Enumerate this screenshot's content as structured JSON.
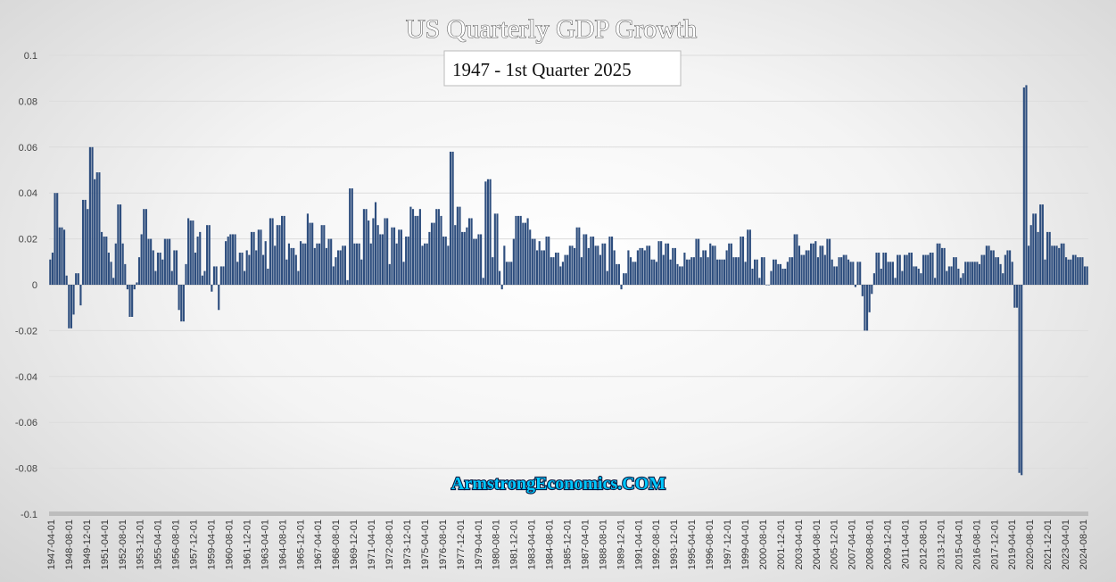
{
  "chart_data": {
    "type": "bar",
    "title": "US Quarterly GDP Growth",
    "subtitle": "1947 - 1st Quarter 2025",
    "watermark": "ArmstrongEconomics.COM",
    "xlabel": "",
    "ylabel": "",
    "ylim": [
      -0.1,
      0.1
    ],
    "yticks": [
      "0.1",
      "0.08",
      "0.06",
      "0.04",
      "0.02",
      "0",
      "-0.02",
      "-0.04",
      "-0.06",
      "-0.08",
      "-0.1"
    ],
    "x_start": "1947-04-01",
    "x_tick_labels": [
      "1947-04-01",
      "1948-08-01",
      "1949-12-01",
      "1951-04-01",
      "1952-08-01",
      "1953-12-01",
      "1955-04-01",
      "1956-08-01",
      "1957-12-01",
      "1959-04-01",
      "1960-08-01",
      "1961-12-01",
      "1963-04-01",
      "1964-08-01",
      "1965-12-01",
      "1967-04-01",
      "1968-08-01",
      "1969-12-01",
      "1971-04-01",
      "1972-08-01",
      "1973-12-01",
      "1975-04-01",
      "1976-08-01",
      "1977-12-01",
      "1979-04-01",
      "1980-08-01",
      "1981-12-01",
      "1983-04-01",
      "1984-08-01",
      "1985-12-01",
      "1987-04-01",
      "1988-08-01",
      "1989-12-01",
      "1991-04-01",
      "1992-08-01",
      "1993-12-01",
      "1995-04-01",
      "1996-08-01",
      "1997-12-01",
      "1999-04-01",
      "2000-08-01",
      "2001-12-01",
      "2003-04-01",
      "2004-08-01",
      "2005-12-01",
      "2007-04-01",
      "2008-08-01",
      "2009-12-01",
      "2011-04-01",
      "2012-08-01",
      "2013-12-01",
      "2015-04-01",
      "2016-08-01",
      "2017-12-01",
      "2019-04-01",
      "2020-08-01",
      "2021-12-01",
      "2023-04-01",
      "2024-08-01"
    ],
    "bar_color": "#2e4e7e",
    "values": [
      0.011,
      0.014,
      0.04,
      0.04,
      0.025,
      0.025,
      0.024,
      0.004,
      -0.019,
      -0.019,
      -0.013,
      0.005,
      0.005,
      -0.009,
      0.037,
      0.037,
      0.033,
      0.06,
      0.06,
      0.046,
      0.049,
      0.049,
      0.023,
      0.021,
      0.021,
      0.014,
      0.01,
      0.003,
      0.018,
      0.035,
      0.035,
      0.018,
      0.009,
      -0.002,
      -0.014,
      -0.014,
      -0.002,
      0.001,
      0.012,
      0.022,
      0.033,
      0.033,
      0.02,
      0.02,
      0.015,
      0.006,
      0.014,
      0.014,
      0.011,
      0.02,
      0.02,
      0.02,
      0.006,
      0.015,
      0.015,
      -0.011,
      -0.016,
      -0.016,
      0.009,
      0.029,
      0.028,
      0.028,
      0.014,
      0.021,
      0.023,
      0.004,
      0.006,
      0.026,
      0.026,
      -0.003,
      0.008,
      0.008,
      -0.011,
      0.008,
      0.008,
      0.019,
      0.021,
      0.022,
      0.022,
      0.022,
      0.01,
      0.014,
      0.014,
      0.006,
      0.015,
      0.013,
      0.023,
      0.023,
      0.015,
      0.024,
      0.024,
      0.013,
      0.019,
      0.007,
      0.029,
      0.029,
      0.017,
      0.026,
      0.026,
      0.03,
      0.03,
      0.011,
      0.018,
      0.016,
      0.016,
      0.013,
      0.006,
      0.019,
      0.018,
      0.018,
      0.031,
      0.027,
      0.027,
      0.016,
      0.018,
      0.018,
      0.026,
      0.026,
      0.016,
      0.02,
      0.02,
      0.008,
      0.012,
      0.015,
      0.015,
      0.017,
      0.017,
      0.002,
      0.042,
      0.042,
      0.018,
      0.018,
      0.018,
      0.011,
      0.033,
      0.033,
      0.028,
      0.018,
      0.029,
      0.036,
      0.026,
      0.022,
      0.022,
      0.029,
      0.029,
      0.009,
      0.025,
      0.025,
      0.018,
      0.024,
      0.024,
      0.01,
      0.021,
      0.021,
      0.034,
      0.033,
      0.03,
      0.03,
      0.033,
      0.017,
      0.018,
      0.018,
      0.023,
      0.027,
      0.027,
      0.033,
      0.033,
      0.03,
      0.021,
      0.021,
      0.017,
      0.058,
      0.058,
      0.026,
      0.034,
      0.034,
      0.023,
      0.023,
      0.025,
      0.029,
      0.029,
      0.02,
      0.02,
      0.022,
      0.022,
      0.003,
      0.045,
      0.046,
      0.046,
      0.012,
      0.031,
      0.031,
      0.006,
      -0.002,
      0.017,
      0.01,
      0.01,
      0.01,
      0.02,
      0.03,
      0.03,
      0.03,
      0.027,
      0.027,
      0.029,
      0.024,
      0.02,
      0.02,
      0.015,
      0.019,
      0.015,
      0.015,
      0.021,
      0.021,
      0.012,
      0.012,
      0.014,
      0.014,
      0.008,
      0.01,
      0.013,
      0.013,
      0.017,
      0.017,
      0.016,
      0.025,
      0.025,
      0.012,
      0.022,
      0.022,
      0.016,
      0.021,
      0.021,
      0.017,
      0.017,
      0.013,
      0.018,
      0.018,
      0.006,
      0.021,
      0.021,
      0.015,
      0.009,
      0.009,
      -0.002,
      0.005,
      0.005,
      0.015,
      0.012,
      0.01,
      0.01,
      0.015,
      0.016,
      0.016,
      0.015,
      0.017,
      0.017,
      0.011,
      0.011,
      0.01,
      0.019,
      0.019,
      0.013,
      0.018,
      0.018,
      0.011,
      0.016,
      0.016,
      0.009,
      0.008,
      0.008,
      0.014,
      0.011,
      0.011,
      0.012,
      0.012,
      0.02,
      0.02,
      0.012,
      0.015,
      0.015,
      0.012,
      0.018,
      0.017,
      0.017,
      0.011,
      0.011,
      0.011,
      0.011,
      0.015,
      0.018,
      0.018,
      0.012,
      0.012,
      0.012,
      0.021,
      0.021,
      0.01,
      0.024,
      0.024,
      0.007,
      0.011,
      0.011,
      0.003,
      0.012,
      0.012,
      0.0,
      0.0,
      0.006,
      0.011,
      0.011,
      0.009,
      0.009,
      0.007,
      0.007,
      0.01,
      0.012,
      0.012,
      0.022,
      0.022,
      0.017,
      0.013,
      0.013,
      0.015,
      0.015,
      0.018,
      0.018,
      0.019,
      0.012,
      0.017,
      0.017,
      0.013,
      0.02,
      0.02,
      0.011,
      0.008,
      0.008,
      0.012,
      0.012,
      0.013,
      0.013,
      0.011,
      0.01,
      0.01,
      -0.001,
      0.01,
      0.01,
      -0.005,
      -0.02,
      -0.02,
      -0.012,
      -0.004,
      0.005,
      0.014,
      0.014,
      0.007,
      0.014,
      0.014,
      0.01,
      0.01,
      0.01,
      0.003,
      0.013,
      0.013,
      0.006,
      0.013,
      0.013,
      0.014,
      0.014,
      0.008,
      0.008,
      0.007,
      0.005,
      0.013,
      0.013,
      0.013,
      0.014,
      0.014,
      0.003,
      0.018,
      0.018,
      0.016,
      0.016,
      0.006,
      0.008,
      0.008,
      0.012,
      0.012,
      0.007,
      0.003,
      0.005,
      0.01,
      0.01,
      0.01,
      0.01,
      0.01,
      0.01,
      0.009,
      0.013,
      0.013,
      0.017,
      0.017,
      0.015,
      0.015,
      0.012,
      0.012,
      0.009,
      0.005,
      0.013,
      0.015,
      0.015,
      0.01,
      -0.01,
      -0.01,
      -0.082,
      -0.083,
      0.086,
      0.087,
      0.017,
      0.026,
      0.031,
      0.031,
      0.023,
      0.035,
      0.035,
      0.011,
      0.023,
      0.023,
      0.017,
      0.017,
      0.017,
      0.016,
      0.018,
      0.018,
      0.012,
      0.011,
      0.011,
      0.013,
      0.013,
      0.012,
      0.012,
      0.012,
      0.008,
      0.008
    ]
  }
}
